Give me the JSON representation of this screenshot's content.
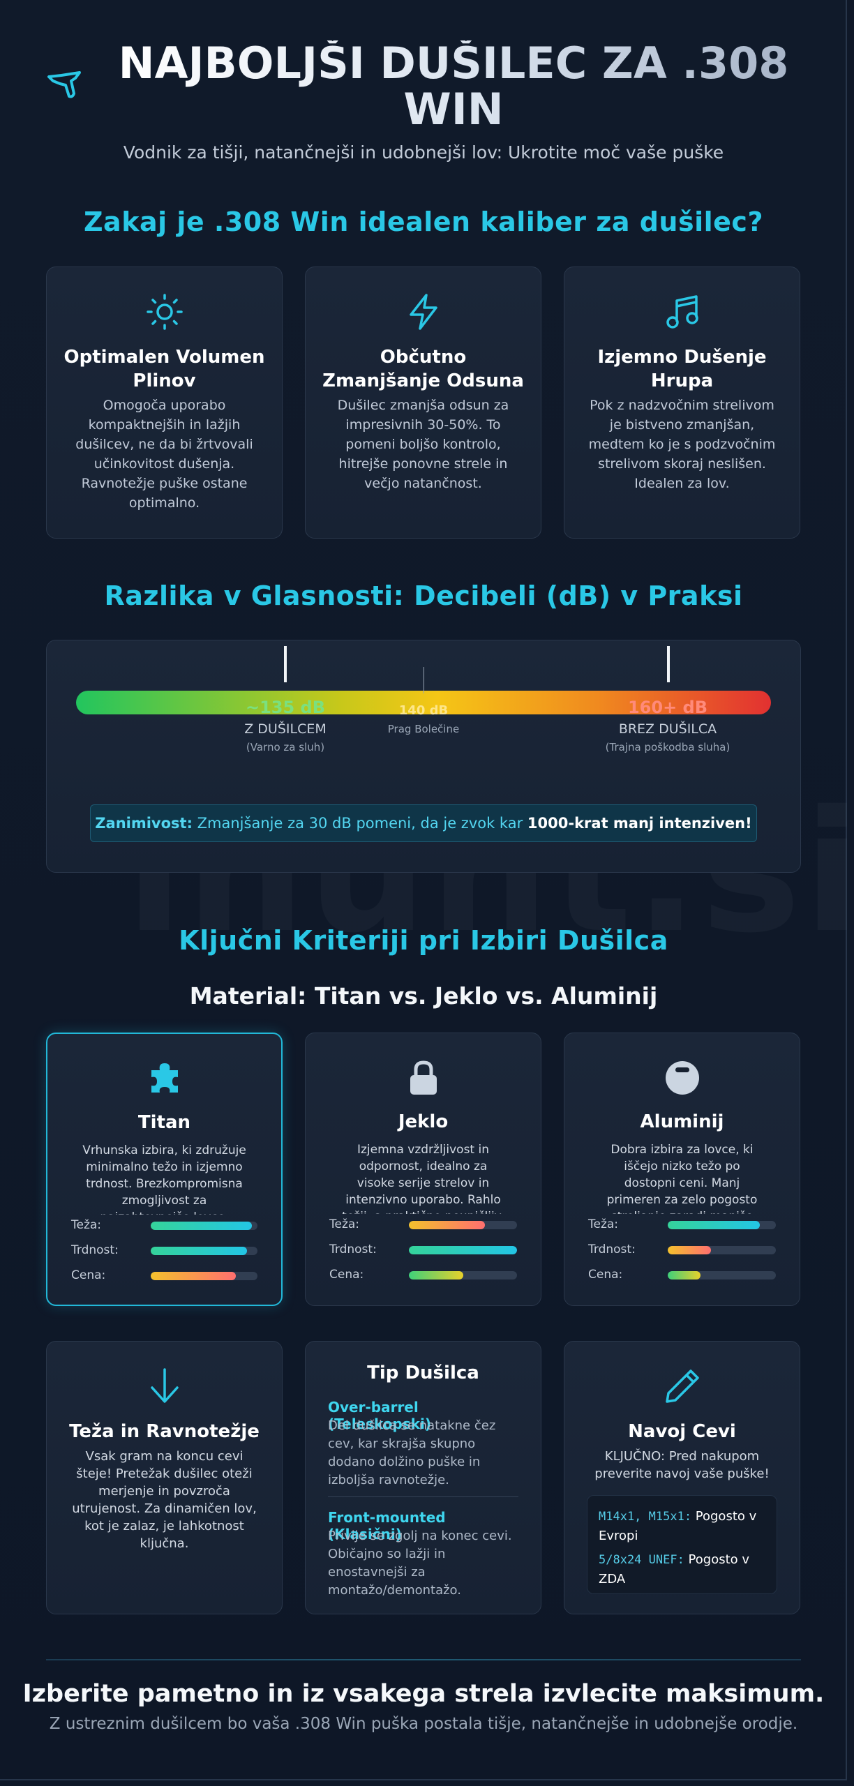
{
  "hero": {
    "title": "NAJBOLJŠI DUŠILEC ZA .308 WIN",
    "subtitle": "Vodnik za tišji, natančnejši in udobnejši lov: Ukrotite moč vaše puške"
  },
  "watermark": "ihunt.si",
  "why": {
    "title": "Zakaj je .308 Win idealen kaliber za dušilec?",
    "cards": [
      {
        "icon": "sun-icon",
        "title": "Optimalen Volumen Plinov",
        "text": "Omogoča uporabo kompaktnejših in lažjih dušilcev, ne da bi žrtvovali učinkovitost dušenja. Ravnotežje puške ostane optimalno."
      },
      {
        "icon": "lightning-icon",
        "title": "Občutno Zmanjšanje Odsuna",
        "text": "Dušilec zmanjša odsun za impresivnih 30-50%. To pomeni boljšo kontrolo, hitrejše ponovne strele in večjo natančnost."
      },
      {
        "icon": "music-note-icon",
        "title": "Izjemno Dušenje Hrupa",
        "text": "Pok z nadzvočnim strelivom je bistveno zmanjšan, medtem ko je s podzvočnim strelivom skoraj neslišen. Idealen za lov."
      }
    ]
  },
  "decibels": {
    "title": "Razlika v Glasnosti: Decibeli (dB) v Praksi",
    "with": {
      "value": "~135 dB",
      "label": "Z DUŠILCEM",
      "note": "(Varno za sluh)"
    },
    "threshold": {
      "value": "140 dB",
      "label": "Prag Bolečine"
    },
    "without": {
      "value": "160+ dB",
      "label": "BREZ DUŠILCA",
      "note": "(Trajna poškodba sluha)"
    },
    "fact": {
      "lead": "Zanimivost:",
      "text": " Zmanjšanje za 30 dB pomeni, da je zvok kar ",
      "bold": "1000-krat manj intenziven!"
    }
  },
  "criteria": {
    "title": "Ključni Kriteriji pri Izbiri Dušilca",
    "subtitle": "Material: Titan vs. Jeklo vs. Aluminij",
    "bar_labels": {
      "weight": "Teža:",
      "strength": "Trdnost:",
      "price": "Cena:"
    },
    "materials": [
      {
        "icon": "puzzle-icon",
        "name": "Titan",
        "text": "Vrhunska izbira, ki združuje minimalno težo in izjemno trdnost. Brezkompromisna zmogljivost za najzahtevnejše lovce.",
        "weight": 0.95,
        "strength": 0.9,
        "price": 0.8
      },
      {
        "icon": "lock-icon",
        "name": "Jeklo",
        "text": "Izjemna vzdržljivost in odpornost, idealno za visoke serije strelov in intenzivno uporabo. Rahlo težji, a praktično neuničljiv.",
        "weight": 0.7,
        "strength": 1.0,
        "price": 0.5
      },
      {
        "icon": "minus-circle-icon",
        "name": "Aluminij",
        "text": "Dobra izbira za lovce, ki iščejo nizko težo po dostopni ceni. Manj primeren za zelo pogosto streljanje zaradi manjše vzdržljivosti.",
        "weight": 0.85,
        "strength": 0.4,
        "price": 0.3
      }
    ]
  },
  "extras": {
    "weight_card": {
      "title": "Teža in Ravnotežje",
      "text": "Vsak gram na koncu cevi šteje! Pretežak dušilec oteži merjenje in povzroča utrujenost. Za dinamičen lov, kot je zalaz, je lahkotnost ključna."
    },
    "type_card": {
      "title": "Tip Dušilca",
      "types": [
        {
          "name": "Over-barrel (Teleskopski)",
          "text": "Del dušilca se natakne čez cev, kar skrajša skupno dodano dolžino puške in izboljša ravnotežje."
        },
        {
          "name": "Front-mounted (Klasični)",
          "text": "Privije se zgolj na konec cevi. Običajno so lažji in enostavnejši za montažo/demontažo."
        }
      ]
    },
    "thread_card": {
      "title": "Navoj Cevi",
      "text": "KLJUČNO: Pred nakupom preverite navoj vaše puške!",
      "threads": [
        {
          "code": "M14x1, M15x1:",
          "text": " Pogosto v Evropi"
        },
        {
          "code": "5/8x24 UNEF:",
          "text": " Pogosto v ZDA"
        }
      ]
    }
  },
  "footer": {
    "title": "Izberite pametno in iz vsakega strela izvlecite maksimum.",
    "subtitle": "Z ustreznim dušilcem bo vaša .308 Win puška postala tišje, natančnejše in udobnejše orodje."
  },
  "colors": {
    "accent": "#2ac8e6",
    "background": "#0f1828",
    "card": "#1b2638",
    "green": "#22c55e",
    "red": "#e23131",
    "yellow": "#f5c616"
  }
}
